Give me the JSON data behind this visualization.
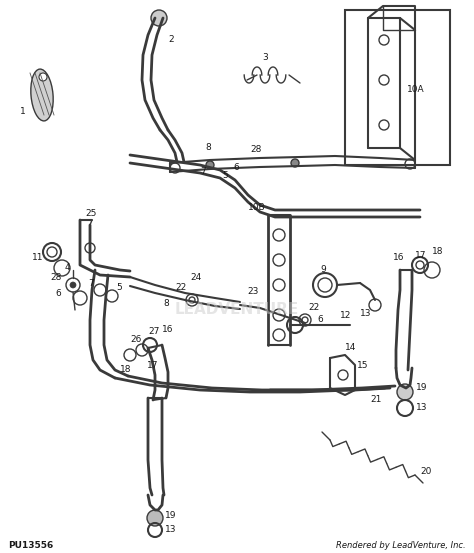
{
  "bg_color": "#ffffff",
  "line_color": "#3a3a3a",
  "text_color": "#1a1a1a",
  "bottom_left_text": "PU13556",
  "bottom_right_text": "Rendered by LeadVenture, Inc."
}
